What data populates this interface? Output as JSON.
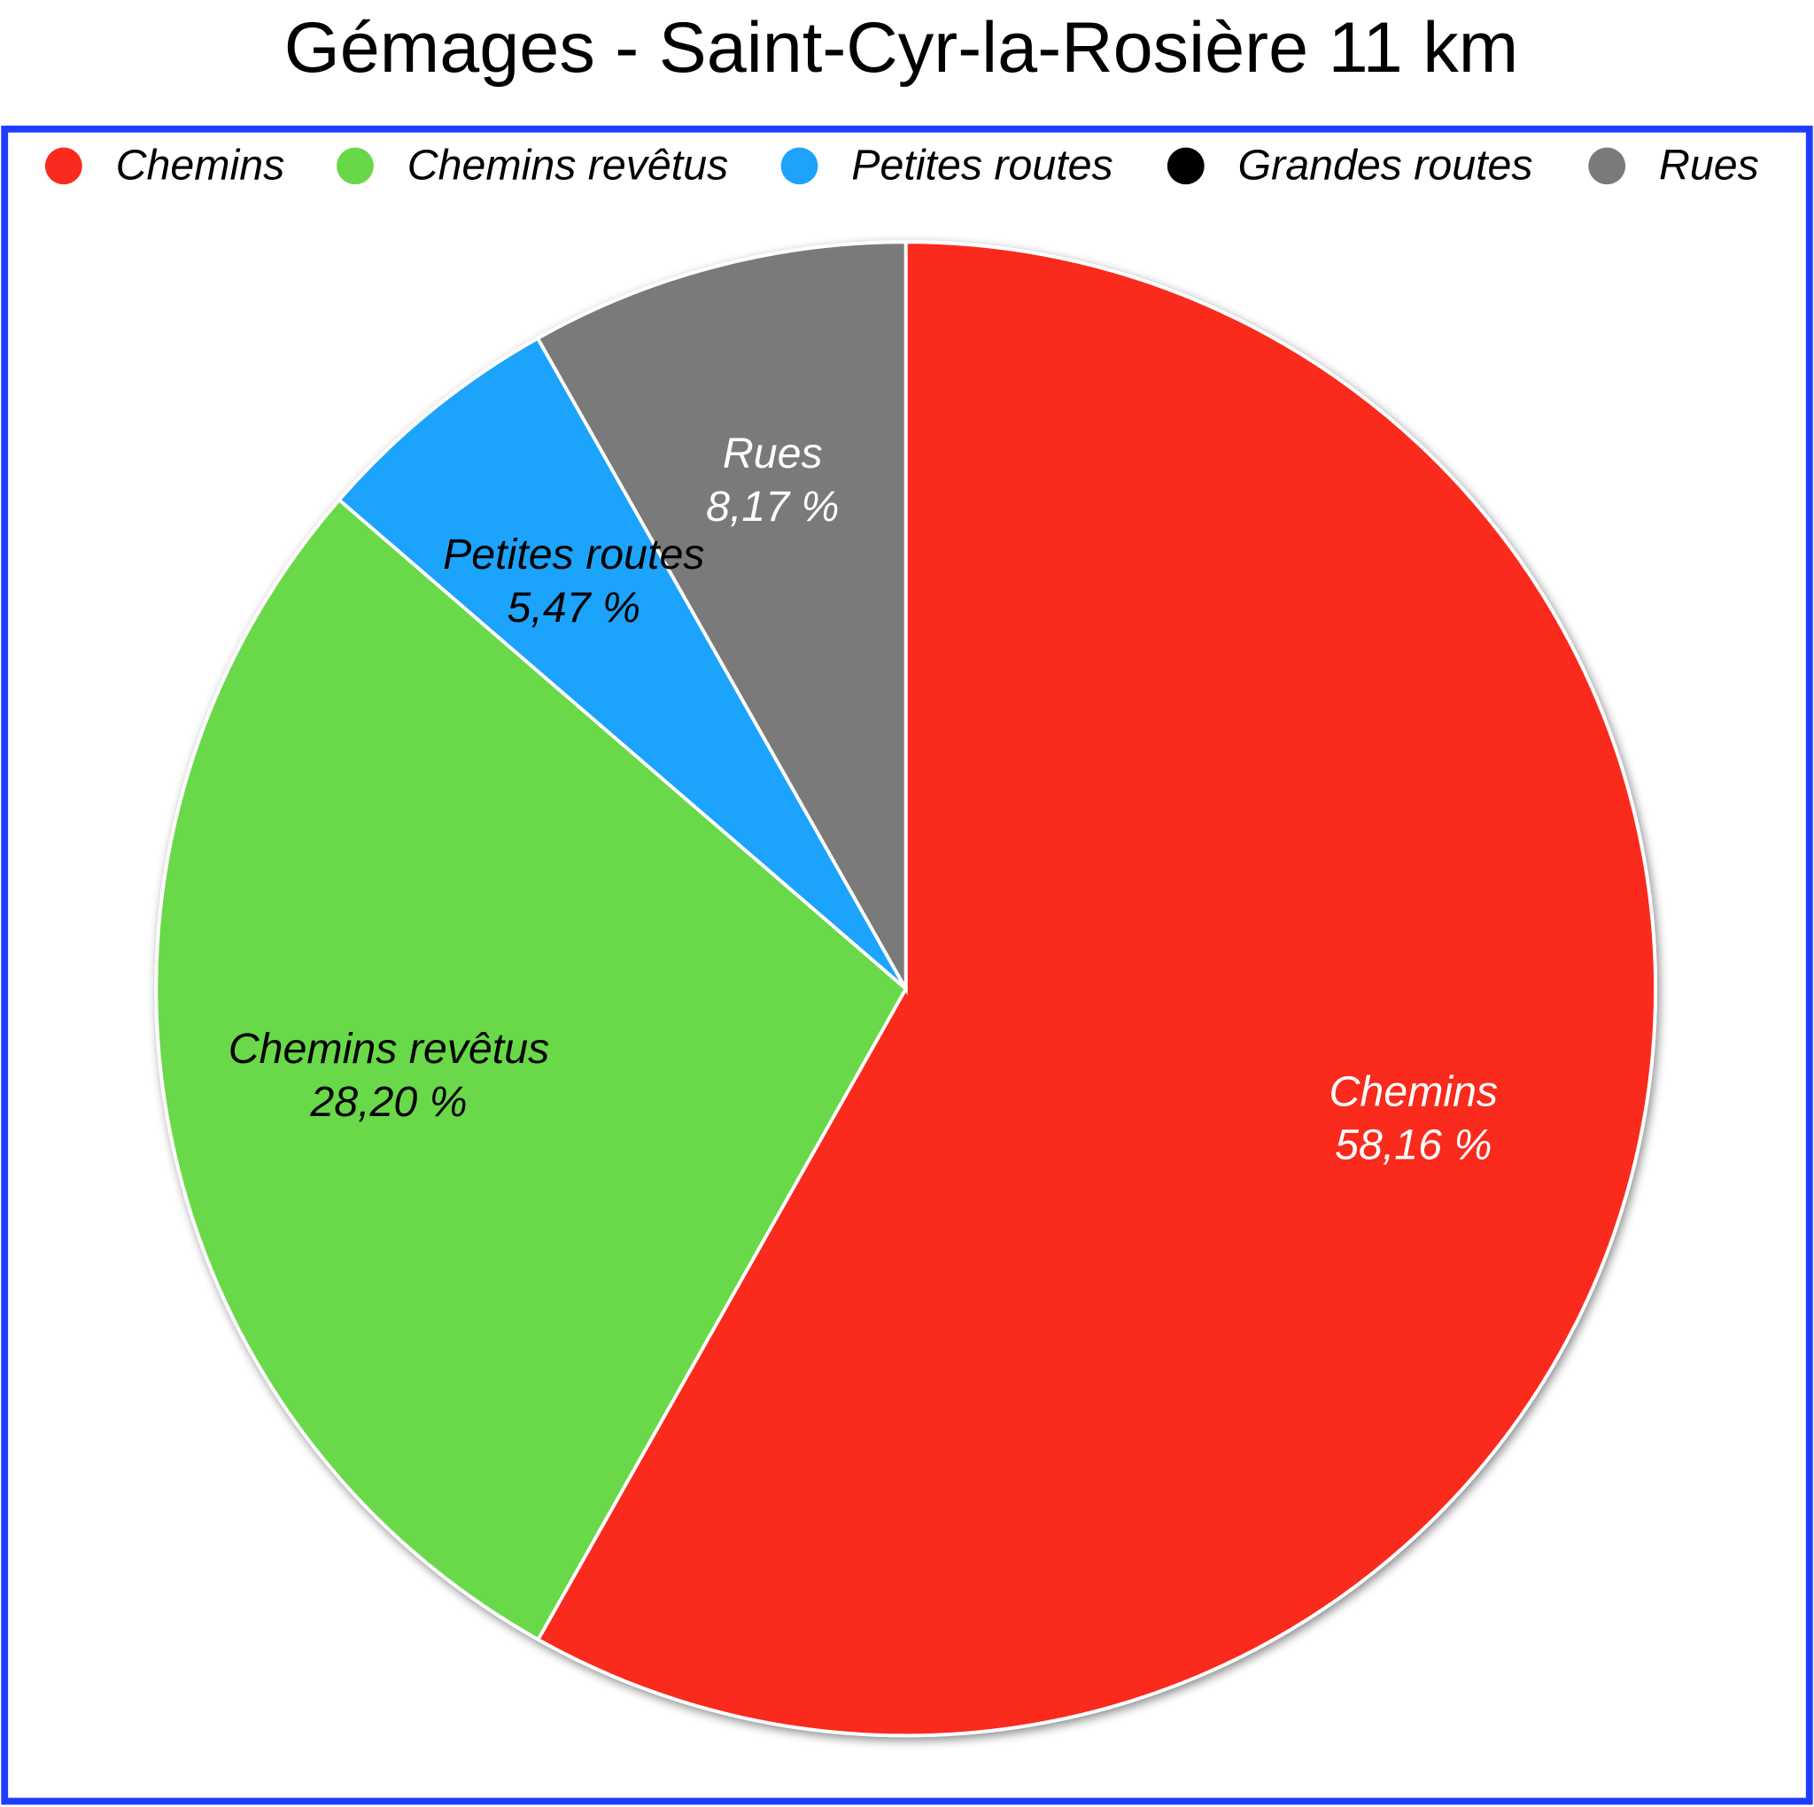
{
  "chart_data": {
    "type": "pie",
    "title": "Gémages - Saint-Cyr-la-Rosière 11 km",
    "categories": [
      "Chemins",
      "Chemins revêtus",
      "Petites routes",
      "Grandes routes",
      "Rues"
    ],
    "values": [
      58.16,
      28.2,
      5.47,
      0,
      8.17
    ],
    "value_labels": [
      "58,16 %",
      "28,20 %",
      "5,47 %",
      null,
      "8,17 %"
    ],
    "colors": [
      "#fa2a1e",
      "#69d848",
      "#1ea3fb",
      "#000000",
      "#7a7a7a"
    ],
    "legend": "top"
  }
}
